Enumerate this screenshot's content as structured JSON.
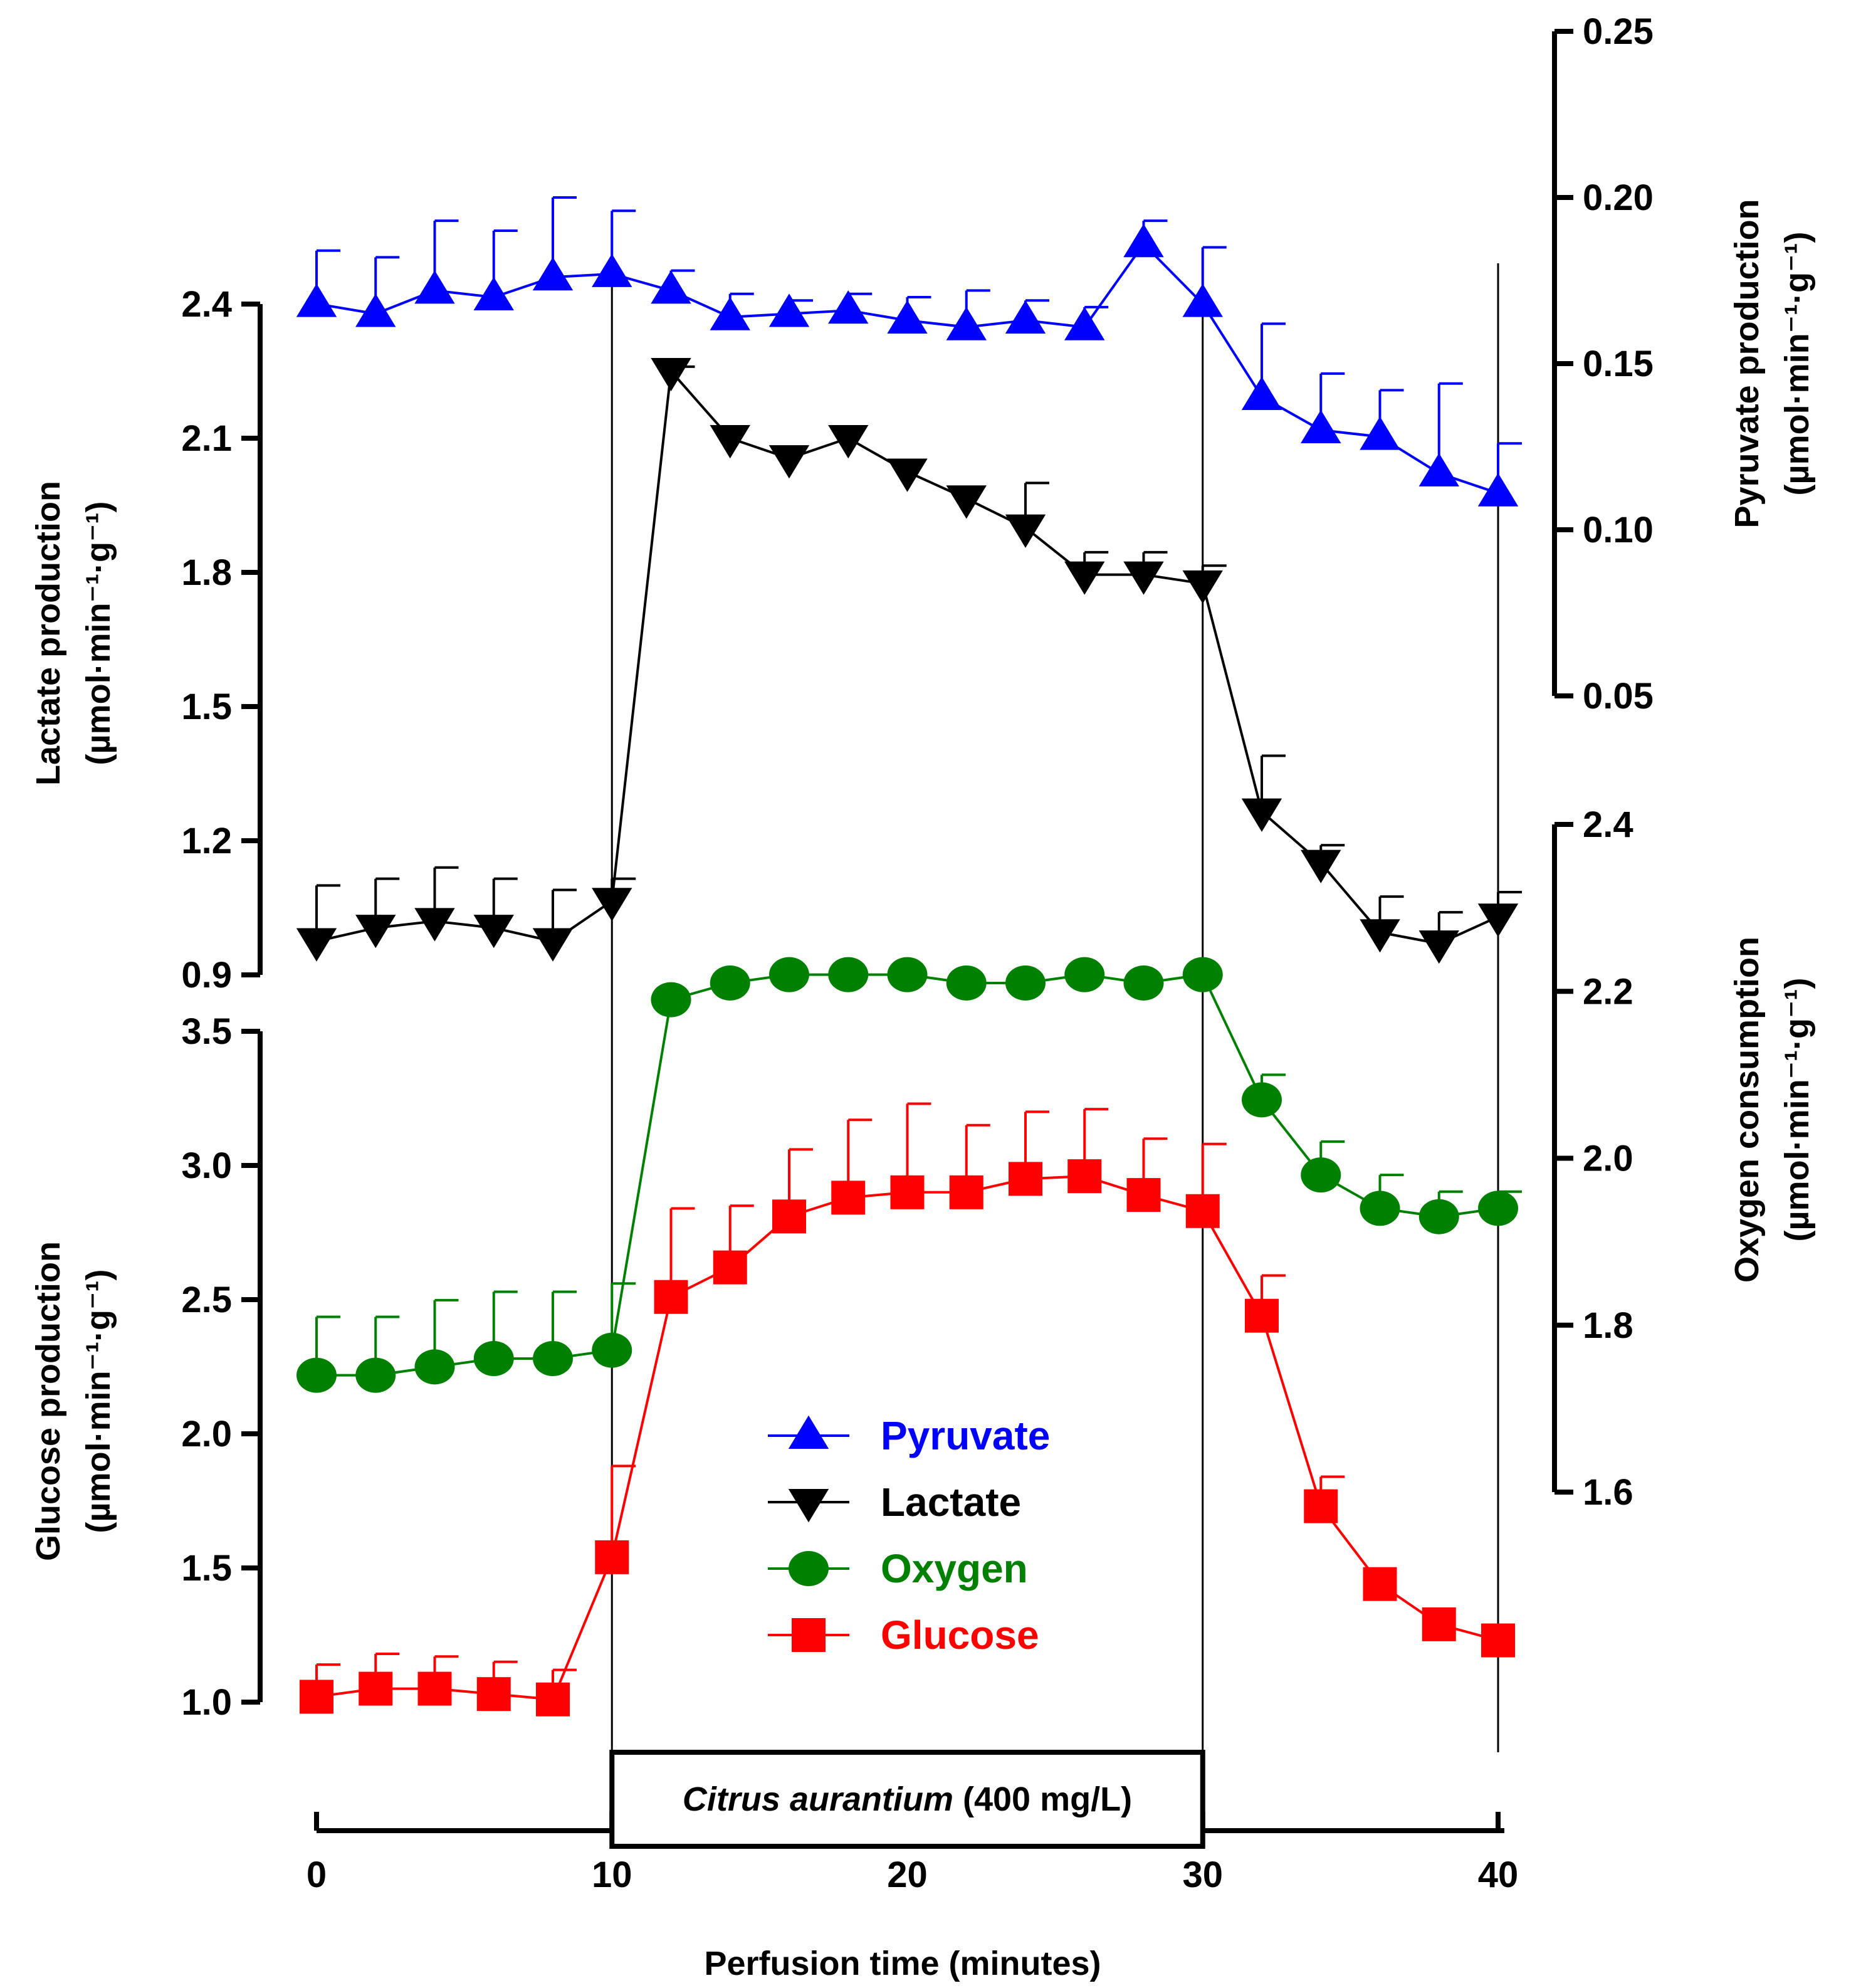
{
  "chart_data": {
    "type": "line",
    "x_label": "Perfusion time (minutes)",
    "x_ticks": [
      "0",
      "10",
      "20",
      "30",
      "40"
    ],
    "xlim": [
      0,
      40
    ],
    "treatment_box": {
      "species": "Citrus aurantium",
      "dose": "(400 mg/L)",
      "start": 10,
      "end": 30
    },
    "axes": {
      "lactate": {
        "title_line1": "Lactate production",
        "title_line2": "(µmol·min⁻¹·g⁻¹)",
        "ylim": [
          0.9,
          2.4
        ],
        "ticks": [
          "2.4",
          "2.1",
          "1.8",
          "1.5",
          "1.2",
          "0.9"
        ]
      },
      "pyruvate": {
        "title_line1": "Pyruvate production",
        "title_line2": "(µmol·min⁻¹·g⁻¹)",
        "ylim": [
          0.05,
          0.25
        ],
        "ticks": [
          "0.25",
          "0.20",
          "0.15",
          "0.10",
          "0.05"
        ]
      },
      "glucose": {
        "title_line1": "Glucose production",
        "title_line2": "(µmol·min⁻¹·g⁻¹)",
        "ylim": [
          1.0,
          3.5
        ],
        "ticks": [
          "3.5",
          "3.0",
          "2.5",
          "2.0",
          "1.5",
          "1.0"
        ]
      },
      "oxygen": {
        "title_line1": "Oxygen consumption",
        "title_line2": "(µmol·min⁻¹·g⁻¹)",
        "ylim": [
          1.6,
          2.4
        ],
        "ticks": [
          "2.4",
          "2.2",
          "2.0",
          "1.8",
          "1.6"
        ]
      }
    },
    "x": [
      0,
      2,
      4,
      6,
      8,
      10,
      12,
      14,
      16,
      18,
      20,
      22,
      24,
      26,
      28,
      30,
      32,
      34,
      36,
      38,
      40
    ],
    "series": [
      {
        "name": "Pyruvate",
        "axis": "pyruvate",
        "color": "#0000ff",
        "marker": "triangle-up",
        "values": [
          0.168,
          0.165,
          0.172,
          0.17,
          0.176,
          0.177,
          0.172,
          0.164,
          0.165,
          0.166,
          0.163,
          0.161,
          0.163,
          0.161,
          0.186,
          0.168,
          0.14,
          0.13,
          0.128,
          0.117,
          0.111
        ],
        "err": [
          0.016,
          0.017,
          0.021,
          0.02,
          0.024,
          0.019,
          0.006,
          0.007,
          0.004,
          0.005,
          0.007,
          0.011,
          0.006,
          0.006,
          0.007,
          0.017,
          0.022,
          0.017,
          0.014,
          0.027,
          0.015
        ]
      },
      {
        "name": "Lactate",
        "axis": "lactate",
        "color": "#000000",
        "marker": "triangle-down",
        "values": [
          0.975,
          1.005,
          1.02,
          1.005,
          0.975,
          1.065,
          2.25,
          2.1,
          2.055,
          2.1,
          2.025,
          1.965,
          1.9,
          1.795,
          1.795,
          1.775,
          1.265,
          1.15,
          0.995,
          0.97,
          1.03
        ],
        "err": [
          0.125,
          0.11,
          0.12,
          0.11,
          0.115,
          0.05,
          0.01,
          0.0,
          0.0,
          0.0,
          0.0,
          0.0,
          0.1,
          0.05,
          0.05,
          0.04,
          0.125,
          0.04,
          0.08,
          0.07,
          0.055
        ]
      },
      {
        "name": "Oxygen",
        "axis": "oxygen",
        "color": "#008000",
        "marker": "circle",
        "values": [
          1.74,
          1.74,
          1.75,
          1.76,
          1.76,
          1.77,
          2.19,
          2.21,
          2.22,
          2.22,
          2.22,
          2.21,
          2.21,
          2.22,
          2.21,
          2.22,
          2.07,
          1.98,
          1.94,
          1.93,
          1.94
        ],
        "err": [
          0.07,
          0.07,
          0.08,
          0.08,
          0.08,
          0.08,
          0.0,
          0.0,
          0.0,
          0.0,
          0.0,
          0.0,
          0.0,
          0.0,
          0.0,
          0.0,
          0.03,
          0.04,
          0.04,
          0.03,
          0.02
        ]
      },
      {
        "name": "Glucose",
        "axis": "glucose",
        "color": "#ff0000",
        "marker": "square",
        "values": [
          1.02,
          1.05,
          1.05,
          1.03,
          1.01,
          1.54,
          2.51,
          2.62,
          2.81,
          2.88,
          2.9,
          2.9,
          2.95,
          2.96,
          2.89,
          2.83,
          2.44,
          1.73,
          1.44,
          1.29,
          1.23
        ],
        "err": [
          0.12,
          0.13,
          0.12,
          0.12,
          0.11,
          0.34,
          0.33,
          0.23,
          0.25,
          0.29,
          0.33,
          0.25,
          0.25,
          0.25,
          0.21,
          0.25,
          0.15,
          0.11,
          0.0,
          0.0,
          0.0
        ]
      }
    ],
    "legend": [
      "Pyruvate",
      "Lactate",
      "Oxygen",
      "Glucose"
    ]
  }
}
